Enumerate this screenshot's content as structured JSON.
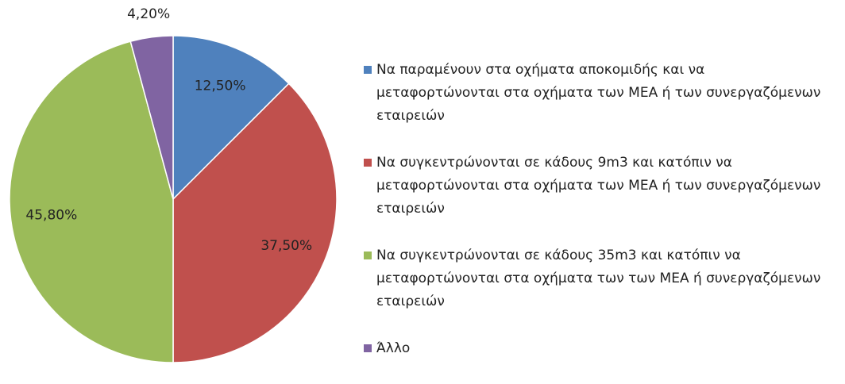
{
  "chart_data": {
    "type": "pie",
    "categories": [
      "Να παραμένουν στα οχήματα αποκομιδής και να μεταφορτώνονται στα οχήματα των ΜΕΑ ή των συνεργαζόμενων εταιρειών",
      "Να συγκεντρώνονται σε κάδους 9m3 και κατόπιν να μεταφορτώνονται στα οχήματα των ΜΕΑ ή των συνεργαζόμενων εταιρειών",
      "Να συγκεντρώνονται σε κάδους 35m3 και κατόπιν να μεταφορτώνονται στα οχήματα των των ΜΕΑ ή συνεργαζόμενων εταιρειών",
      "Άλλο"
    ],
    "values": [
      12.5,
      37.5,
      45.8,
      4.2
    ],
    "value_labels": [
      "12,50%",
      "37,50%",
      "45,80%",
      "4,20%"
    ],
    "colors": [
      "#4f81bd",
      "#c0504d",
      "#9bbb59",
      "#8064a2"
    ],
    "legend": "right"
  }
}
